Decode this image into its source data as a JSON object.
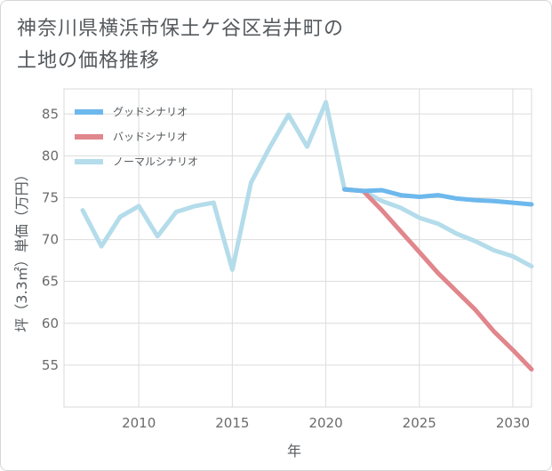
{
  "title_lines": [
    "神奈川県横浜市保土ケ谷区岩井町の",
    "土地の価格推移"
  ],
  "chart_data": {
    "type": "line",
    "title": "神奈川県横浜市保土ケ谷区岩井町の土地の価格推移",
    "xlabel": "年",
    "ylabel": "坪（3.3㎡）単価（万円）",
    "xlim": [
      2006,
      2031
    ],
    "ylim": [
      50,
      88
    ],
    "xticks": [
      2010,
      2015,
      2020,
      2025,
      2030
    ],
    "yticks": [
      55,
      60,
      65,
      70,
      75,
      80,
      85
    ],
    "grid": true,
    "legend_position": "top-left",
    "series": [
      {
        "name": "グッドシナリオ",
        "color": "#6db8ec",
        "x": [
          2021,
          2022,
          2023,
          2024,
          2025,
          2026,
          2027,
          2028,
          2029,
          2030,
          2031
        ],
        "y": [
          76.0,
          75.8,
          75.9,
          75.3,
          75.1,
          75.3,
          74.9,
          74.7,
          74.6,
          74.4,
          74.2
        ]
      },
      {
        "name": "バッドシナリオ",
        "color": "#e0868c",
        "x": [
          2021,
          2022,
          2023,
          2024,
          2025,
          2026,
          2027,
          2028,
          2029,
          2030,
          2031
        ],
        "y": [
          76.0,
          75.8,
          73.5,
          71.0,
          68.5,
          66.0,
          63.8,
          61.6,
          59.0,
          56.8,
          54.5
        ]
      },
      {
        "name": "ノーマルシナリオ",
        "color": "#b4dcea",
        "x": [
          2007,
          2008,
          2009,
          2010,
          2011,
          2012,
          2013,
          2014,
          2015,
          2016,
          2017,
          2018,
          2019,
          2020,
          2021,
          2022,
          2023,
          2024,
          2025,
          2026,
          2027,
          2028,
          2029,
          2030,
          2031
        ],
        "y": [
          73.5,
          69.2,
          72.7,
          74.0,
          70.4,
          73.3,
          74.0,
          74.4,
          66.4,
          76.8,
          81.0,
          84.9,
          81.1,
          86.4,
          76.0,
          75.8,
          74.6,
          73.8,
          72.6,
          71.9,
          70.7,
          69.8,
          68.7,
          68.0,
          66.8
        ]
      }
    ]
  }
}
